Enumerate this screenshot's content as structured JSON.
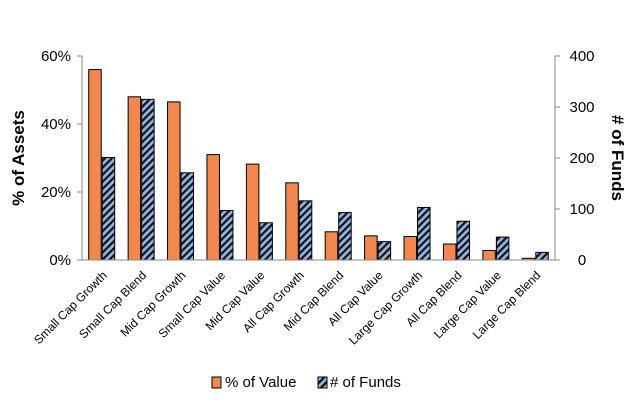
{
  "chart_data": {
    "type": "bar",
    "title": "",
    "categories": [
      "Small Cap Growth",
      "Small Cap Blend",
      "Mid Cap Growth",
      "Small Cap Value",
      "Mid Cap Value",
      "All Cap Growth",
      "Mid Cap Blend",
      "All Cap Value",
      "Large Cap Growth",
      "All Cap Blend",
      "Large Cap Value",
      "Large Cap Blend"
    ],
    "series": [
      {
        "name": "% of Value",
        "axis": "left",
        "color": "#F4874B",
        "values": [
          56,
          48,
          46.5,
          31,
          28.2,
          22.7,
          8.3,
          7.1,
          6.9,
          4.7,
          2.8,
          0.5
        ]
      },
      {
        "name": "# of Funds",
        "axis": "right",
        "color": "#8FB4E3",
        "pattern": "diagonal-hatch",
        "values": [
          201,
          315,
          171,
          97,
          73,
          116,
          93,
          36,
          103,
          76,
          45,
          15
        ]
      }
    ],
    "ylabel": "% of Assets",
    "y2label": "# of Funds",
    "ylim": [
      0,
      60
    ],
    "y2lim": [
      0,
      400
    ],
    "yticks": [
      "0%",
      "20%",
      "40%",
      "60%"
    ],
    "y2ticks": [
      "0",
      "100",
      "200",
      "300",
      "400"
    ],
    "grid": false,
    "legend": "bottom"
  }
}
